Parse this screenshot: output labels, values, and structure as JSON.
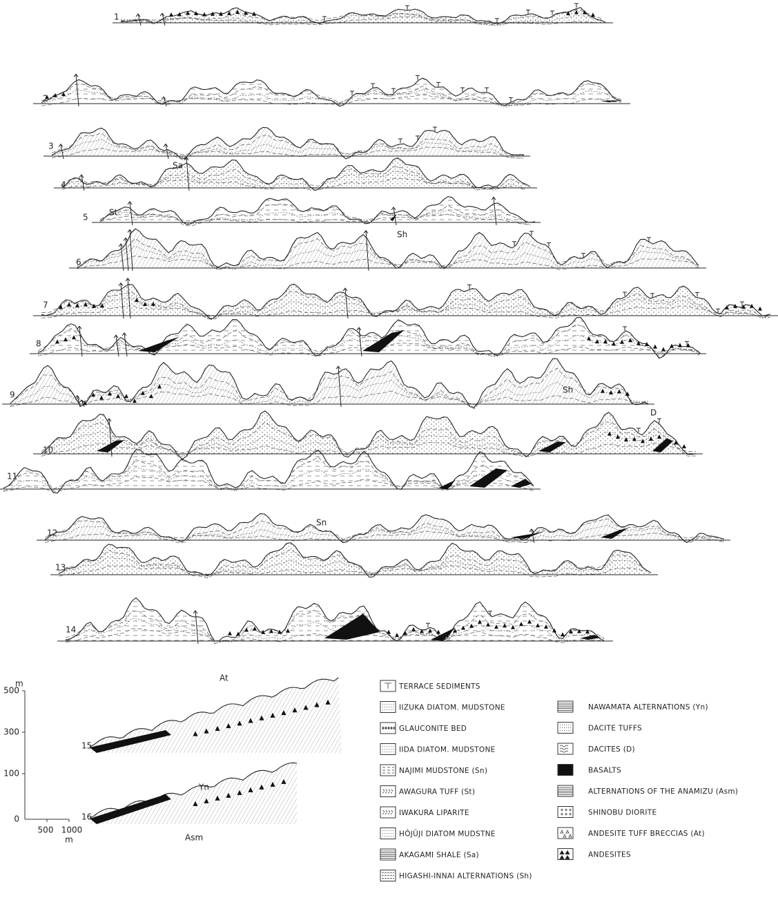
{
  "sections": [
    "1",
    "2",
    "3",
    "4",
    "5",
    "6",
    "7",
    "8",
    "9",
    "10",
    "11",
    "12",
    "13",
    "14",
    "15",
    "16"
  ],
  "annotations": [
    "Sa",
    "St",
    "Sh",
    "Sh",
    "D",
    "Sn",
    "At",
    "Yn",
    "Asm"
  ],
  "scale": {
    "vertical_unit": "m",
    "vertical_ticks": [
      "500",
      "300",
      "100",
      "0"
    ],
    "horizontal_ticks": [
      "500",
      "1000"
    ],
    "horizontal_unit": "m"
  },
  "legend": {
    "left": [
      "TERRACE SEDIMENTS",
      "IIZUKA DIATOM. MUDSTONE",
      "GLAUCONITE BED",
      "IIDA DIATOM. MUDSTONE",
      "NAJIMI MUDSTONE (Sn)",
      "AWAGURA TUFF (St)",
      "IWAKURA LIPARITE",
      "HÔJÛJI DIATOM MUDSTNE",
      "AKAGAMI SHALE (Sa)",
      "HIGASHI-INNAI ALTERNATIONS (Sh)"
    ],
    "right": [
      "NAWAMATA ALTERNATIONS (Yn)",
      "DACITE TUFFS",
      "DACITES (D)",
      "BASALTS",
      "ALTERNATIONS OF THE ANAMIZU (Asm)",
      "SHINOBU DIORITE",
      "ANDESITE TUFF BRECCIAS (At)",
      "ANDESITES"
    ]
  }
}
